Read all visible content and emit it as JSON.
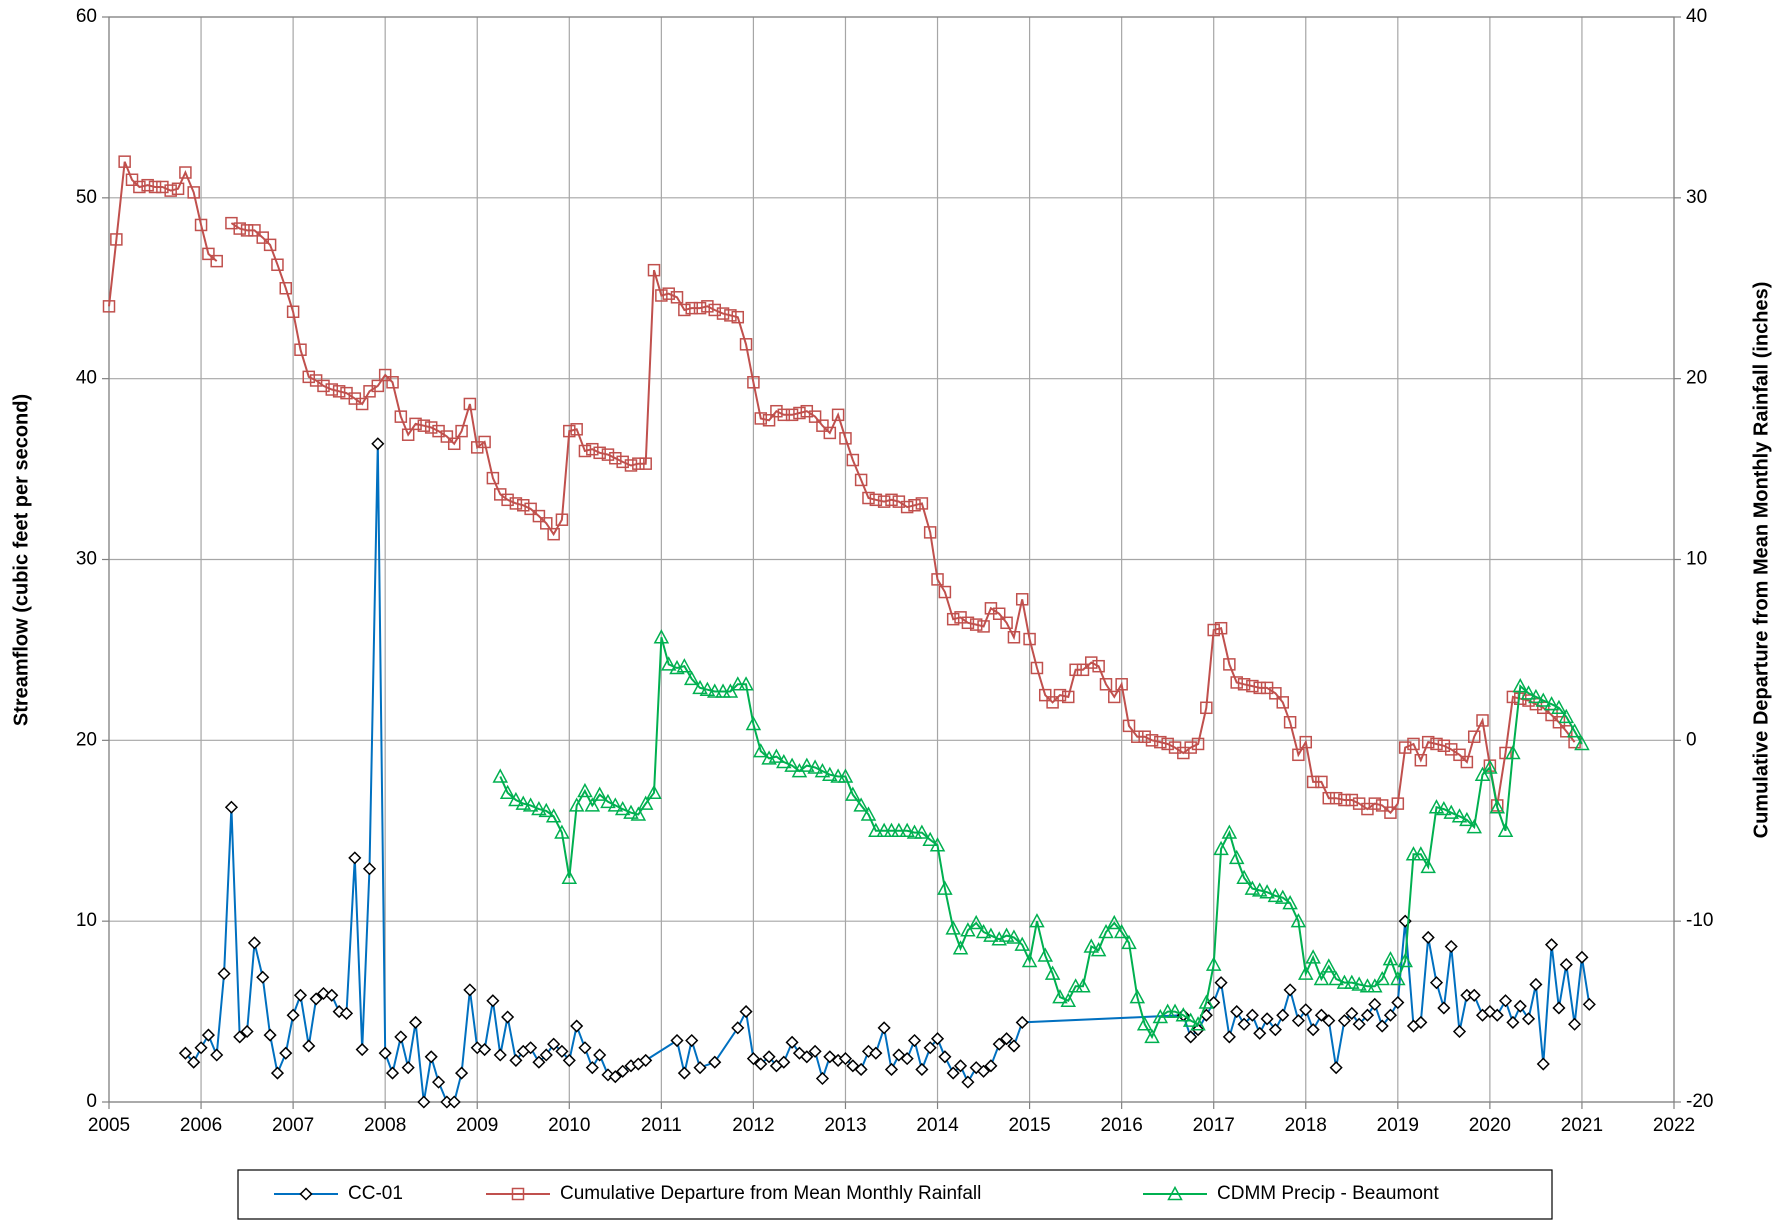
{
  "chart_data": {
    "type": "line",
    "ylabel": "Streamflow (cubic feet per second)",
    "y2label": "Cumulative Departure from Mean Monthly Rainfall (inches)",
    "xlim": [
      2005,
      2022
    ],
    "xticks": [
      2005,
      2006,
      2007,
      2008,
      2009,
      2010,
      2011,
      2012,
      2013,
      2014,
      2015,
      2016,
      2017,
      2018,
      2019,
      2020,
      2021,
      2022
    ],
    "ylim": [
      0,
      60
    ],
    "yticks": [
      0,
      10,
      20,
      30,
      40,
      50,
      60
    ],
    "y2lim": [
      -20,
      40
    ],
    "y2ticks": [
      -20,
      -10,
      0,
      10,
      20,
      30,
      40
    ],
    "grid": true,
    "legend": "bottom",
    "series": [
      {
        "name": "CC-01",
        "color": "#0070c0",
        "marker": "diamond",
        "axis": "y",
        "x": [
          2005.83,
          2005.92,
          2006,
          2006.08,
          2006.17,
          2006.25,
          2006.33,
          2006.42,
          2006.5,
          2006.58,
          2006.67,
          2006.75,
          2006.83,
          2006.92,
          2007,
          2007.08,
          2007.17,
          2007.25,
          2007.33,
          2007.42,
          2007.5,
          2007.58,
          2007.67,
          2007.75,
          2007.83,
          2007.92,
          2008,
          2008.08,
          2008.17,
          2008.25,
          2008.33,
          2008.42,
          2008.5,
          2008.58,
          2008.67,
          2008.75,
          2008.83,
          2008.92,
          2009,
          2009.08,
          2009.17,
          2009.25,
          2009.33,
          2009.42,
          2009.5,
          2009.58,
          2009.67,
          2009.75,
          2009.83,
          2009.92,
          2010,
          2010.08,
          2010.17,
          2010.25,
          2010.33,
          2010.42,
          2010.5,
          2010.58,
          2010.67,
          2010.75,
          2010.83,
          2011.17,
          2011.25,
          2011.33,
          2011.42,
          2011.58,
          2011.83,
          2011.92,
          2012,
          2012.08,
          2012.17,
          2012.25,
          2012.33,
          2012.42,
          2012.5,
          2012.58,
          2012.67,
          2012.75,
          2012.83,
          2012.92,
          2013,
          2013.08,
          2013.17,
          2013.25,
          2013.33,
          2013.42,
          2013.5,
          2013.58,
          2013.67,
          2013.75,
          2013.83,
          2013.92,
          2014,
          2014.08,
          2014.17,
          2014.25,
          2014.33,
          2014.42,
          2014.5,
          2014.58,
          2014.67,
          2014.75,
          2014.83,
          2014.92,
          2016.67,
          2016.75,
          2016.83,
          2016.92,
          2017,
          2017.08,
          2017.17,
          2017.25,
          2017.33,
          2017.42,
          2017.5,
          2017.58,
          2017.67,
          2017.75,
          2017.83,
          2017.92,
          2018,
          2018.08,
          2018.17,
          2018.25,
          2018.33,
          2018.42,
          2018.5,
          2018.58,
          2018.67,
          2018.75,
          2018.83,
          2018.92,
          2019,
          2019.08,
          2019.17,
          2019.25,
          2019.33,
          2019.42,
          2019.5,
          2019.58,
          2019.67,
          2019.75,
          2019.83,
          2019.92,
          2020,
          2020.08,
          2020.17,
          2020.25,
          2020.33,
          2020.42,
          2020.5,
          2020.58,
          2020.67,
          2020.75,
          2020.83,
          2020.92,
          2021,
          2021.08
        ],
        "values": [
          2.7,
          2.2,
          3.0,
          3.7,
          2.6,
          7.1,
          16.3,
          3.6,
          3.9,
          8.8,
          6.9,
          3.7,
          1.6,
          2.7,
          4.8,
          5.9,
          3.1,
          5.7,
          6.0,
          5.9,
          5.0,
          4.9,
          13.5,
          2.9,
          12.9,
          36.4,
          2.7,
          1.6,
          3.6,
          1.9,
          4.4,
          0.0,
          2.5,
          1.1,
          0.0,
          0.0,
          1.6,
          6.2,
          3.0,
          2.9,
          5.6,
          2.6,
          4.7,
          2.3,
          2.8,
          3.0,
          2.2,
          2.6,
          3.2,
          2.8,
          2.3,
          4.2,
          3.0,
          1.9,
          2.6,
          1.5,
          1.4,
          1.7,
          2.0,
          2.1,
          2.3,
          3.4,
          1.6,
          3.4,
          1.9,
          2.2,
          4.1,
          5.0,
          2.4,
          2.1,
          2.5,
          2.0,
          2.2,
          3.3,
          2.7,
          2.5,
          2.8,
          1.3,
          2.5,
          2.3,
          2.4,
          2.0,
          1.8,
          2.8,
          2.7,
          4.1,
          1.8,
          2.6,
          2.4,
          3.4,
          1.8,
          3.0,
          3.5,
          2.5,
          1.6,
          2.0,
          1.1,
          1.9,
          1.7,
          2.0,
          3.2,
          3.5,
          3.1,
          4.4,
          4.8,
          3.6,
          4.0,
          4.8,
          5.5,
          6.6,
          3.6,
          5.0,
          4.3,
          4.8,
          3.8,
          4.6,
          4.0,
          4.8,
          6.2,
          4.5,
          5.1,
          4.0,
          4.8,
          4.5,
          1.9,
          4.5,
          4.9,
          4.3,
          4.8,
          5.4,
          4.2,
          4.8,
          5.5,
          10.0,
          4.2,
          4.4,
          9.1,
          6.6,
          5.2,
          8.6,
          3.9,
          5.9,
          5.9,
          4.8,
          5.0,
          4.8,
          5.6,
          4.4,
          5.3,
          4.6,
          6.5,
          2.1,
          8.7,
          5.2,
          7.6,
          4.3,
          8.0,
          5.4
        ]
      },
      {
        "name": "Cumulative Departure from Mean Monthly Rainfall",
        "color": "#c0504d",
        "marker": "square",
        "axis": "y2",
        "x": [
          2005,
          2005.08,
          2005.17,
          2005.25,
          2005.33,
          2005.42,
          2005.5,
          2005.58,
          2005.67,
          2005.75,
          2005.83,
          2005.92,
          2006,
          2006.08,
          2006.17,
          2006.25,
          2006.33,
          2006.42,
          2006.5,
          2006.58,
          2006.67,
          2006.75,
          2006.83,
          2006.92,
          2007,
          2007.08,
          2007.17,
          2007.25,
          2007.33,
          2007.42,
          2007.5,
          2007.58,
          2007.67,
          2007.75,
          2007.83,
          2007.92,
          2008,
          2008.08,
          2008.17,
          2008.25,
          2008.33,
          2008.42,
          2008.5,
          2008.58,
          2008.67,
          2008.75,
          2008.83,
          2008.92,
          2009,
          2009.08,
          2009.17,
          2009.25,
          2009.33,
          2009.42,
          2009.5,
          2009.58,
          2009.67,
          2009.75,
          2009.83,
          2009.92,
          2010,
          2010.08,
          2010.17,
          2010.25,
          2010.33,
          2010.42,
          2010.5,
          2010.58,
          2010.67,
          2010.75,
          2010.83,
          2010.92,
          2011,
          2011.08,
          2011.17,
          2011.25,
          2011.33,
          2011.42,
          2011.5,
          2011.58,
          2011.67,
          2011.75,
          2011.83,
          2011.92,
          2012,
          2012.08,
          2012.17,
          2012.25,
          2012.33,
          2012.42,
          2012.5,
          2012.58,
          2012.67,
          2012.75,
          2012.83,
          2012.92,
          2013,
          2013.08,
          2013.17,
          2013.25,
          2013.33,
          2013.42,
          2013.5,
          2013.58,
          2013.67,
          2013.75,
          2013.83,
          2013.92,
          2014,
          2014.08,
          2014.17,
          2014.25,
          2014.33,
          2014.42,
          2014.5,
          2014.58,
          2014.67,
          2014.75,
          2014.83,
          2014.92,
          2015,
          2015.08,
          2015.17,
          2015.25,
          2015.33,
          2015.42,
          2015.5,
          2015.58,
          2015.67,
          2015.75,
          2015.83,
          2015.92,
          2016,
          2016.08,
          2016.17,
          2016.25,
          2016.33,
          2016.42,
          2016.5,
          2016.58,
          2016.67,
          2016.75,
          2016.83,
          2016.92,
          2017,
          2017.08,
          2017.17,
          2017.25,
          2017.33,
          2017.42,
          2017.5,
          2017.58,
          2017.67,
          2017.75,
          2017.83,
          2017.92,
          2018,
          2018.08,
          2018.17,
          2018.25,
          2018.33,
          2018.42,
          2018.5,
          2018.58,
          2018.67,
          2018.75,
          2018.83,
          2018.92,
          2019,
          2019.08,
          2019.17,
          2019.25,
          2019.33,
          2019.42,
          2019.5,
          2019.58,
          2019.67,
          2019.75,
          2019.83,
          2019.92,
          2020,
          2020.08,
          2020.17,
          2020.25,
          2020.33,
          2020.42,
          2020.5,
          2020.58,
          2020.67,
          2020.75,
          2020.83,
          2020.92
        ],
        "values": [
          24.0,
          27.7,
          32.0,
          31.0,
          30.6,
          30.7,
          30.6,
          30.6,
          30.4,
          30.5,
          31.4,
          30.3,
          28.5,
          26.9,
          26.5,
          null,
          28.6,
          28.3,
          28.2,
          28.2,
          27.8,
          27.4,
          26.3,
          25.0,
          23.7,
          21.6,
          20.1,
          19.9,
          19.6,
          19.4,
          19.3,
          19.2,
          18.9,
          18.6,
          19.3,
          19.6,
          20.2,
          19.8,
          17.9,
          16.9,
          17.5,
          17.4,
          17.3,
          17.1,
          16.8,
          16.4,
          17.1,
          18.6,
          16.2,
          16.5,
          14.5,
          13.6,
          13.3,
          13.1,
          13.0,
          12.8,
          12.4,
          12.0,
          11.4,
          12.2,
          17.1,
          17.2,
          16.0,
          16.1,
          15.9,
          15.8,
          15.6,
          15.4,
          15.2,
          15.3,
          15.3,
          26.0,
          24.6,
          24.7,
          24.5,
          23.8,
          23.9,
          23.9,
          24.0,
          23.8,
          23.6,
          23.5,
          23.4,
          21.9,
          19.8,
          17.8,
          17.7,
          18.2,
          18.0,
          18.0,
          18.1,
          18.2,
          17.9,
          17.4,
          17.0,
          18.0,
          16.7,
          15.5,
          14.4,
          13.4,
          13.3,
          13.2,
          13.3,
          13.2,
          12.9,
          13.0,
          13.1,
          11.5,
          8.9,
          8.2,
          6.7,
          6.8,
          6.5,
          6.4,
          6.3,
          7.3,
          7.0,
          6.5,
          5.7,
          7.8,
          5.6,
          4.0,
          2.5,
          2.1,
          2.5,
          2.4,
          3.9,
          3.9,
          4.3,
          4.1,
          3.1,
          2.4,
          3.1,
          0.8,
          0.2,
          0.2,
          0.0,
          -0.1,
          -0.2,
          -0.4,
          -0.7,
          -0.4,
          -0.2,
          1.8,
          6.1,
          6.2,
          4.2,
          3.2,
          3.1,
          3.0,
          2.9,
          2.9,
          2.6,
          2.1,
          1.0,
          -0.8,
          -0.1,
          -2.3,
          -2.3,
          -3.2,
          -3.2,
          -3.3,
          -3.3,
          -3.5,
          -3.8,
          -3.5,
          -3.6,
          -4.0,
          -3.5,
          -0.4,
          -0.2,
          -1.1,
          -0.1,
          -0.2,
          -0.3,
          -0.5,
          -0.8,
          -1.2,
          0.2,
          1.1,
          -1.4,
          -3.6,
          -0.7,
          2.4,
          2.3,
          2.2,
          2.0,
          1.8,
          1.4,
          1.0,
          0.5,
          -0.1
        ]
      },
      {
        "name": "CDMM Precip - Beaumont",
        "color": "#00b050",
        "marker": "triangle",
        "axis": "y2",
        "x": [
          2009.25,
          2009.33,
          2009.42,
          2009.5,
          2009.58,
          2009.67,
          2009.75,
          2009.83,
          2009.92,
          2010,
          2010.08,
          2010.17,
          2010.25,
          2010.33,
          2010.42,
          2010.5,
          2010.58,
          2010.67,
          2010.75,
          2010.83,
          2010.92,
          2011,
          2011.08,
          2011.17,
          2011.25,
          2011.33,
          2011.42,
          2011.5,
          2011.58,
          2011.67,
          2011.75,
          2011.83,
          2011.92,
          2012,
          2012.08,
          2012.17,
          2012.25,
          2012.33,
          2012.42,
          2012.5,
          2012.58,
          2012.67,
          2012.75,
          2012.83,
          2012.92,
          2013,
          2013.08,
          2013.17,
          2013.25,
          2013.33,
          2013.42,
          2013.5,
          2013.58,
          2013.67,
          2013.75,
          2013.83,
          2013.92,
          2014,
          2014.08,
          2014.17,
          2014.25,
          2014.33,
          2014.42,
          2014.5,
          2014.58,
          2014.67,
          2014.75,
          2014.83,
          2014.92,
          2015,
          2015.08,
          2015.17,
          2015.25,
          2015.33,
          2015.42,
          2015.5,
          2015.58,
          2015.67,
          2015.75,
          2015.83,
          2015.92,
          2016,
          2016.08,
          2016.17,
          2016.25,
          2016.33,
          2016.42,
          2016.5,
          2016.58,
          2016.67,
          2016.75,
          2016.83,
          2016.92,
          2017,
          2017.08,
          2017.17,
          2017.25,
          2017.33,
          2017.42,
          2017.5,
          2017.58,
          2017.67,
          2017.75,
          2017.83,
          2017.92,
          2018,
          2018.08,
          2018.17,
          2018.25,
          2018.33,
          2018.42,
          2018.5,
          2018.58,
          2018.67,
          2018.75,
          2018.83,
          2018.92,
          2019,
          2019.08,
          2019.17,
          2019.25,
          2019.33,
          2019.42,
          2019.5,
          2019.58,
          2019.67,
          2019.75,
          2019.83,
          2019.92,
          2020,
          2020.08,
          2020.17,
          2020.25,
          2020.33,
          2020.42,
          2020.5,
          2020.58,
          2020.67,
          2020.75,
          2020.83,
          2020.92,
          2021
        ],
        "values": [
          -2.0,
          -2.9,
          -3.3,
          -3.5,
          -3.6,
          -3.8,
          -3.9,
          -4.2,
          -5.1,
          -7.6,
          -3.6,
          -2.8,
          -3.6,
          -3.0,
          -3.4,
          -3.6,
          -3.8,
          -4.0,
          -4.1,
          -3.5,
          -2.9,
          5.7,
          4.2,
          4.0,
          4.1,
          3.4,
          2.9,
          2.8,
          2.7,
          2.7,
          2.7,
          3.1,
          3.1,
          0.9,
          -0.6,
          -1.0,
          -0.9,
          -1.2,
          -1.4,
          -1.7,
          -1.4,
          -1.5,
          -1.7,
          -1.9,
          -2.0,
          -2.0,
          -3.0,
          -3.6,
          -4.1,
          -5.0,
          -5.0,
          -5.0,
          -5.0,
          -5.0,
          -5.1,
          -5.1,
          -5.5,
          -5.8,
          -8.2,
          -10.4,
          -11.5,
          -10.5,
          -10.1,
          -10.6,
          -10.8,
          -11.0,
          -10.8,
          -10.9,
          -11.3,
          -12.2,
          -10.0,
          -11.9,
          -12.9,
          -14.2,
          -14.4,
          -13.6,
          -13.6,
          -11.4,
          -11.6,
          -10.6,
          -10.1,
          -10.6,
          -11.2,
          -14.2,
          -15.7,
          -16.4,
          -15.3,
          -15.0,
          -15.0,
          -15.2,
          -15.5,
          -15.7,
          -14.5,
          -12.4,
          -6.0,
          -5.1,
          -6.5,
          -7.6,
          -8.2,
          -8.3,
          -8.4,
          -8.6,
          -8.7,
          -9.0,
          -10.0,
          -12.9,
          -12.0,
          -13.2,
          -12.5,
          -13.2,
          -13.4,
          -13.4,
          -13.5,
          -13.6,
          -13.6,
          -13.2,
          -12.1,
          -13.2,
          -12.2,
          -6.3,
          -6.3,
          -7.0,
          -3.7,
          -3.8,
          -4.0,
          -4.2,
          -4.4,
          -4.8,
          -1.9,
          -1.5,
          -3.7,
          -5.0,
          -0.7,
          3.0,
          2.6,
          2.4,
          2.2,
          2.0,
          1.8,
          1.3,
          0.5,
          -0.2
        ]
      }
    ]
  }
}
